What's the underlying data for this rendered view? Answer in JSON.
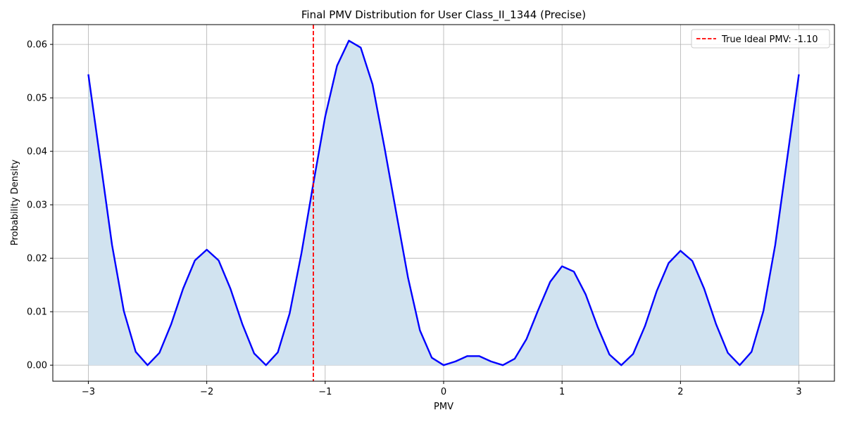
{
  "chart_data": {
    "type": "area",
    "title": "Final PMV Distribution for User Class_II_1344 (Precise)",
    "xlabel": "PMV",
    "ylabel": "Probability Density",
    "xlim": [
      -3.3,
      3.3
    ],
    "ylim": [
      -0.003,
      0.0637
    ],
    "x_ticks": [
      -3,
      -2,
      -1,
      0,
      1,
      2,
      3
    ],
    "x_tick_labels": [
      "−3",
      "−2",
      "−1",
      "0",
      "1",
      "2",
      "3"
    ],
    "y_ticks": [
      0.0,
      0.01,
      0.02,
      0.03,
      0.04,
      0.05,
      0.06
    ],
    "y_tick_labels": [
      "0.00",
      "0.01",
      "0.02",
      "0.03",
      "0.04",
      "0.05",
      "0.06"
    ],
    "grid": true,
    "legend_position": "top-right",
    "series": [
      {
        "line_color": "#0000ff",
        "fill_color": "#d1e3f0",
        "x": [
          -3.0,
          -2.9,
          -2.8,
          -2.7,
          -2.6,
          -2.5,
          -2.4,
          -2.3,
          -2.2,
          -2.1,
          -2.0,
          -1.9,
          -1.8,
          -1.7,
          -1.6,
          -1.5,
          -1.4,
          -1.3,
          -1.2,
          -1.1,
          -1.0,
          -0.9,
          -0.8,
          -0.7,
          -0.6,
          -0.5,
          -0.4,
          -0.3,
          -0.2,
          -0.1,
          0.0,
          0.1,
          0.2,
          0.3,
          0.4,
          0.5,
          0.6,
          0.7,
          0.8,
          0.9,
          1.0,
          1.1,
          1.2,
          1.3,
          1.4,
          1.5,
          1.6,
          1.7,
          1.8,
          1.9,
          2.0,
          2.1,
          2.2,
          2.3,
          2.4,
          2.5,
          2.6,
          2.7,
          2.8,
          2.9,
          3.0
        ],
        "y": [
          0.0544,
          0.0385,
          0.0225,
          0.0101,
          0.0025,
          0.0,
          0.0023,
          0.0077,
          0.0143,
          0.0196,
          0.0216,
          0.0196,
          0.0143,
          0.0077,
          0.0022,
          0.0,
          0.0024,
          0.0097,
          0.021,
          0.034,
          0.0465,
          0.056,
          0.0607,
          0.0594,
          0.0525,
          0.0408,
          0.0285,
          0.0163,
          0.0065,
          0.0014,
          0.0,
          0.0007,
          0.0017,
          0.0017,
          0.0007,
          0.0,
          0.0012,
          0.0049,
          0.0104,
          0.0156,
          0.0185,
          0.0175,
          0.0132,
          0.0072,
          0.002,
          0.0,
          0.0021,
          0.0073,
          0.0139,
          0.0191,
          0.0214,
          0.0195,
          0.0143,
          0.0077,
          0.0023,
          0.0,
          0.0025,
          0.0101,
          0.0225,
          0.0385,
          0.0544
        ]
      }
    ],
    "reference_line": {
      "x": -1.1,
      "color": "#ff0000",
      "style": "dashed",
      "label": "True Ideal PMV: -1.10"
    }
  }
}
